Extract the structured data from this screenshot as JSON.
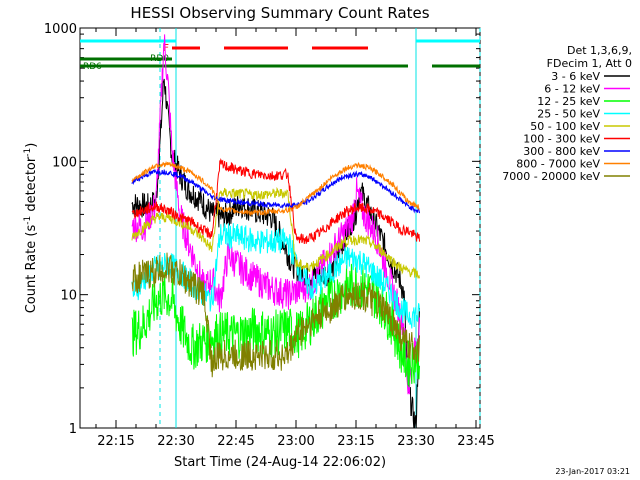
{
  "chart_data": {
    "type": "line",
    "title": "HESSI Observing Summary Count Rates",
    "xlabel": "Start Time (24-Aug-14 22:06:02)",
    "ylabel_main": "Count Rate (s",
    "ylabel_sup1": "-1",
    "ylabel_mid": " detector",
    "ylabel_sup2": "-1",
    "ylabel_end": ")",
    "footer_date": "23-Jan-2017 03:21",
    "x_range_minutes": [
      0,
      100
    ],
    "x_ticks": [
      {
        "label": "22:15",
        "t": 9
      },
      {
        "label": "22:30",
        "t": 24
      },
      {
        "label": "22:45",
        "t": 39
      },
      {
        "label": "23:00",
        "t": 54
      },
      {
        "label": "23:15",
        "t": 69
      },
      {
        "label": "23:30",
        "t": 84
      },
      {
        "label": "23:45",
        "t": 99
      }
    ],
    "y_scale": "log",
    "ylim": [
      1,
      1000
    ],
    "y_ticks": [
      {
        "label": "1",
        "v": 1
      },
      {
        "label": "10",
        "v": 10
      },
      {
        "label": "100",
        "v": 100
      },
      {
        "label": "1000",
        "v": 1000
      }
    ],
    "legend_header": [
      "Det 1,3,6,9,",
      "FDecim 1, Att 0"
    ],
    "series": [
      {
        "name": "3 - 6 keV",
        "color": "#000000",
        "points": [
          [
            13,
            48
          ],
          [
            17,
            46
          ],
          [
            19,
            50
          ],
          [
            20,
            130
          ],
          [
            21,
            440
          ],
          [
            22,
            210
          ],
          [
            23,
            110
          ],
          [
            25,
            80
          ],
          [
            27,
            62
          ],
          [
            30,
            52
          ],
          [
            33,
            40
          ],
          [
            36,
            38
          ],
          [
            40,
            48
          ],
          [
            44,
            42
          ],
          [
            48,
            38
          ],
          [
            51,
            24
          ],
          [
            53,
            17
          ],
          [
            55,
            15
          ],
          [
            57,
            14
          ],
          [
            60,
            14
          ],
          [
            63,
            15
          ],
          [
            66,
            26
          ],
          [
            69,
            42
          ],
          [
            70,
            62
          ],
          [
            72,
            45
          ],
          [
            75,
            28
          ],
          [
            78,
            17
          ],
          [
            80,
            13
          ],
          [
            81,
            10
          ],
          [
            82,
            2
          ],
          [
            84,
            1
          ],
          [
            85,
            9
          ]
        ]
      },
      {
        "name": "6 - 12 keV",
        "color": "#ff00ff",
        "points": [
          [
            13,
            33
          ],
          [
            16,
            32
          ],
          [
            19,
            48
          ],
          [
            20,
            190
          ],
          [
            21,
            830
          ],
          [
            22,
            380
          ],
          [
            23,
            120
          ],
          [
            25,
            40
          ],
          [
            27,
            25
          ],
          [
            29,
            17
          ],
          [
            31,
            11
          ],
          [
            33,
            13
          ],
          [
            35,
            9
          ],
          [
            37,
            20
          ],
          [
            40,
            16
          ],
          [
            44,
            13
          ],
          [
            48,
            11
          ],
          [
            52,
            10
          ],
          [
            55,
            11
          ],
          [
            58,
            12
          ],
          [
            62,
            19
          ],
          [
            65,
            26
          ],
          [
            68,
            36
          ],
          [
            69,
            60
          ],
          [
            71,
            40
          ],
          [
            74,
            28
          ],
          [
            77,
            14
          ],
          [
            79,
            9
          ],
          [
            81,
            6
          ],
          [
            82,
            2
          ],
          [
            85,
            6
          ]
        ]
      },
      {
        "name": "12 - 25 keV",
        "color": "#00ff00",
        "points": [
          [
            13,
            5
          ],
          [
            16,
            6
          ],
          [
            19,
            9
          ],
          [
            21,
            10
          ],
          [
            23,
            9
          ],
          [
            25,
            6
          ],
          [
            28,
            4
          ],
          [
            31,
            4.5
          ],
          [
            34,
            5
          ],
          [
            37,
            5
          ],
          [
            40,
            5
          ],
          [
            44,
            5.5
          ],
          [
            48,
            5
          ],
          [
            52,
            5.5
          ],
          [
            55,
            5
          ],
          [
            58,
            6.5
          ],
          [
            62,
            9
          ],
          [
            66,
            11
          ],
          [
            69,
            12
          ],
          [
            72,
            11
          ],
          [
            75,
            9
          ],
          [
            78,
            6
          ],
          [
            80,
            4
          ],
          [
            82,
            3
          ],
          [
            85,
            3.5
          ]
        ]
      },
      {
        "name": "25 - 50 keV",
        "color": "#00ffff",
        "points": [
          [
            13,
            10
          ],
          [
            16,
            13
          ],
          [
            19,
            16
          ],
          [
            22,
            17
          ],
          [
            25,
            15
          ],
          [
            28,
            12
          ],
          [
            31,
            10
          ],
          [
            33,
            9
          ],
          [
            35,
            28
          ],
          [
            40,
            27
          ],
          [
            44,
            25
          ],
          [
            48,
            25
          ],
          [
            52,
            25
          ],
          [
            54,
            18
          ],
          [
            56,
            13
          ],
          [
            58,
            11
          ],
          [
            61,
            13
          ],
          [
            64,
            16
          ],
          [
            67,
            19
          ],
          [
            70,
            18
          ],
          [
            73,
            15
          ],
          [
            76,
            12
          ],
          [
            78,
            10
          ],
          [
            80,
            8
          ],
          [
            82,
            7
          ],
          [
            85,
            7
          ]
        ]
      },
      {
        "name": "50 - 100 keV",
        "color": "#c8c800",
        "points": [
          [
            13,
            27
          ],
          [
            16,
            32
          ],
          [
            19,
            38
          ],
          [
            22,
            38
          ],
          [
            25,
            35
          ],
          [
            28,
            31
          ],
          [
            31,
            26
          ],
          [
            33,
            22
          ],
          [
            35,
            58
          ],
          [
            40,
            57
          ],
          [
            44,
            56
          ],
          [
            48,
            57
          ],
          [
            52,
            58
          ],
          [
            54,
            17
          ],
          [
            57,
            16
          ],
          [
            60,
            18
          ],
          [
            63,
            21
          ],
          [
            66,
            25
          ],
          [
            69,
            26
          ],
          [
            72,
            25
          ],
          [
            75,
            22
          ],
          [
            78,
            18
          ],
          [
            80,
            16
          ],
          [
            82,
            15
          ],
          [
            85,
            14
          ]
        ]
      },
      {
        "name": "100 - 300 keV",
        "color": "#ff0000",
        "points": [
          [
            13,
            40
          ],
          [
            16,
            43
          ],
          [
            19,
            46
          ],
          [
            22,
            43
          ],
          [
            25,
            38
          ],
          [
            28,
            35
          ],
          [
            31,
            30
          ],
          [
            33,
            28
          ],
          [
            35,
            95
          ],
          [
            40,
            85
          ],
          [
            44,
            80
          ],
          [
            48,
            78
          ],
          [
            52,
            80
          ],
          [
            54,
            26
          ],
          [
            57,
            26
          ],
          [
            60,
            29
          ],
          [
            63,
            35
          ],
          [
            66,
            41
          ],
          [
            69,
            45
          ],
          [
            72,
            44
          ],
          [
            75,
            40
          ],
          [
            78,
            35
          ],
          [
            80,
            31
          ],
          [
            82,
            30
          ],
          [
            85,
            26
          ]
        ]
      },
      {
        "name": "300 - 800 keV",
        "color": "#0000ff",
        "points": [
          [
            13,
            70
          ],
          [
            16,
            78
          ],
          [
            19,
            84
          ],
          [
            22,
            83
          ],
          [
            25,
            78
          ],
          [
            28,
            70
          ],
          [
            31,
            60
          ],
          [
            33,
            54
          ],
          [
            35,
            52
          ],
          [
            40,
            49
          ],
          [
            44,
            48
          ],
          [
            48,
            47
          ],
          [
            52,
            47
          ],
          [
            54,
            47
          ],
          [
            57,
            50
          ],
          [
            60,
            58
          ],
          [
            63,
            68
          ],
          [
            66,
            77
          ],
          [
            69,
            80
          ],
          [
            72,
            78
          ],
          [
            75,
            68
          ],
          [
            78,
            58
          ],
          [
            80,
            52
          ],
          [
            82,
            46
          ],
          [
            85,
            42
          ]
        ]
      },
      {
        "name": "800 - 7000 keV",
        "color": "#ff8000",
        "points": [
          [
            13,
            72
          ],
          [
            16,
            82
          ],
          [
            19,
            94
          ],
          [
            22,
            95
          ],
          [
            25,
            90
          ],
          [
            28,
            82
          ],
          [
            31,
            70
          ],
          [
            33,
            62
          ],
          [
            35,
            44
          ],
          [
            40,
            42
          ],
          [
            44,
            41
          ],
          [
            48,
            42
          ],
          [
            52,
            43
          ],
          [
            54,
            45
          ],
          [
            57,
            53
          ],
          [
            60,
            63
          ],
          [
            63,
            76
          ],
          [
            66,
            87
          ],
          [
            69,
            94
          ],
          [
            72,
            90
          ],
          [
            75,
            80
          ],
          [
            78,
            68
          ],
          [
            80,
            58
          ],
          [
            82,
            50
          ],
          [
            85,
            45
          ]
        ]
      },
      {
        "name": "7000 - 20000 keV",
        "color": "#808000",
        "points": [
          [
            13,
            13
          ],
          [
            16,
            14
          ],
          [
            19,
            15
          ],
          [
            22,
            16
          ],
          [
            25,
            14
          ],
          [
            28,
            12
          ],
          [
            31,
            10
          ],
          [
            33,
            3
          ],
          [
            35,
            3.5
          ],
          [
            40,
            3.5
          ],
          [
            44,
            3.5
          ],
          [
            48,
            3.5
          ],
          [
            52,
            3.5
          ],
          [
            54,
            5
          ],
          [
            57,
            6
          ],
          [
            60,
            7
          ],
          [
            63,
            8
          ],
          [
            66,
            9.5
          ],
          [
            69,
            10
          ],
          [
            72,
            9.5
          ],
          [
            75,
            8
          ],
          [
            78,
            6.5
          ],
          [
            80,
            5
          ],
          [
            82,
            4
          ],
          [
            85,
            4
          ]
        ]
      }
    ],
    "annotations": {
      "flare_label": "F",
      "rd0_label": "RD0",
      "rd6_label": "RD6",
      "flare_segments": [
        [
          23,
          30
        ],
        [
          36,
          52
        ],
        [
          58,
          72
        ]
      ],
      "cyan_top_segments": [
        [
          0,
          24
        ],
        [
          84,
          100
        ]
      ],
      "rd0_segments": [
        [
          0,
          23
        ]
      ],
      "green_segments": [
        [
          0,
          34
        ],
        [
          34,
          54
        ],
        [
          54,
          82
        ],
        [
          88,
          100
        ]
      ],
      "cyan_vlines_solid": [
        24,
        84
      ],
      "cyan_vlines_dashed": [
        20,
        100
      ]
    }
  }
}
